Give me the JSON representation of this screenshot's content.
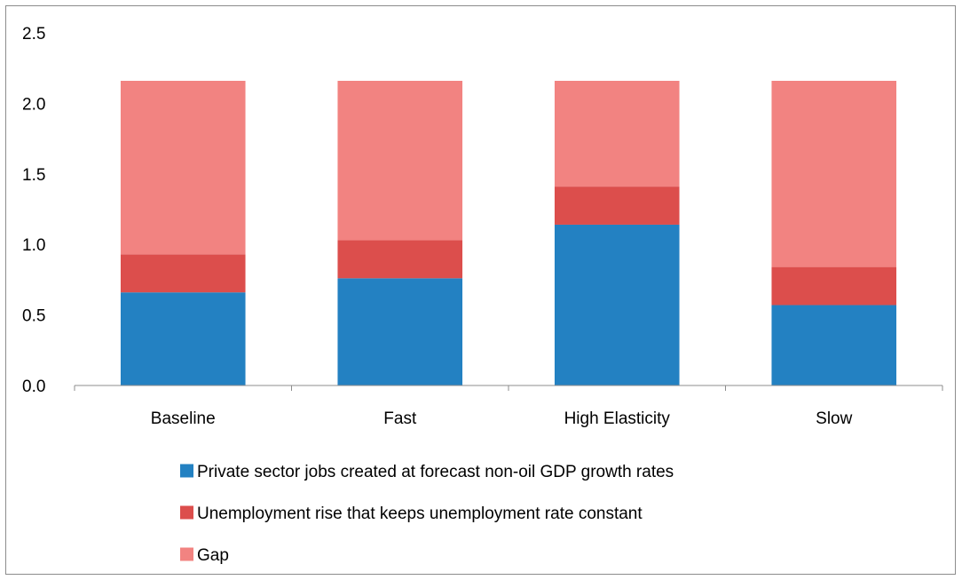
{
  "chart_data": {
    "type": "bar",
    "stacked": true,
    "categories": [
      "Baseline",
      "Fast",
      "High Elasticity",
      "Slow"
    ],
    "series": [
      {
        "name": "Private sector jobs created at forecast non-oil GDP growth rates",
        "color": "#2381c2",
        "values": [
          0.66,
          0.76,
          1.14,
          0.57
        ]
      },
      {
        "name": "Unemployment rise that keeps unemployment rate constant",
        "color": "#dc4e4c",
        "values": [
          0.27,
          0.27,
          0.27,
          0.27
        ]
      },
      {
        "name": "Gap",
        "color": "#f28381",
        "values": [
          1.23,
          1.13,
          0.75,
          1.32
        ]
      }
    ],
    "yticks": [
      "0.0",
      "0.5",
      "1.0",
      "1.5",
      "2.0",
      "2.5"
    ],
    "ylim": [
      0,
      2.5
    ],
    "grid": false,
    "legend_position": "bottom"
  }
}
